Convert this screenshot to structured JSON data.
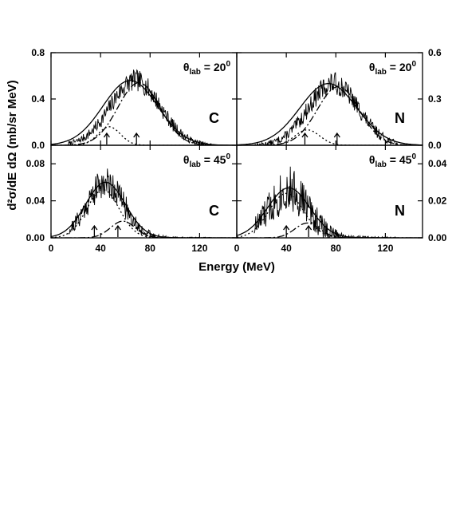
{
  "chart_data": {
    "type": "line",
    "xlabel": "Energy (MeV)",
    "ylabel": "d²σ/dE dΩ (mb/sr MeV)",
    "xlim": [
      0,
      150
    ],
    "x_ticks": [
      "0",
      "40",
      "80",
      "120"
    ],
    "grid": false,
    "panels": [
      {
        "id": "c20",
        "row": 0,
        "col": 0,
        "ylim": [
          0,
          0.8
        ],
        "y_ticks": [
          "0.0",
          "0.4",
          "0.8"
        ],
        "y_tick_values": [
          0,
          0.4,
          0.8
        ],
        "y_axis_side": "left",
        "nucleus": "C",
        "angle": {
          "symbol": "θ",
          "sub": "lab",
          "value": " = 20",
          "sup": "0"
        },
        "noise_amp": 0.09,
        "noise_seed": 7,
        "arrows": [
          45,
          69
        ],
        "series": [
          {
            "style": "data-spectrum",
            "peak": 0.56,
            "center": 68,
            "width": 20
          },
          {
            "style": "solid",
            "peak": 0.56,
            "center": 64,
            "width": 22
          },
          {
            "style": "dotted",
            "peak": 0.16,
            "center": 47,
            "width": 9
          },
          {
            "style": "dash-dot",
            "peak": 0.54,
            "center": 71,
            "width": 17
          }
        ]
      },
      {
        "id": "n20",
        "row": 0,
        "col": 1,
        "ylim": [
          0,
          0.6
        ],
        "y_ticks": [
          "0.0",
          "0.3",
          "0.6"
        ],
        "y_tick_values": [
          0,
          0.3,
          0.6
        ],
        "y_axis_side": "right",
        "nucleus": "N",
        "angle": {
          "symbol": "θ",
          "sub": "lab",
          "value": " = 20",
          "sup": "0"
        },
        "noise_amp": 0.07,
        "noise_seed": 13,
        "arrows": [
          55,
          81
        ],
        "series": [
          {
            "style": "data-spectrum",
            "peak": 0.4,
            "center": 78,
            "width": 20
          },
          {
            "style": "solid",
            "peak": 0.4,
            "center": 74,
            "width": 23
          },
          {
            "style": "dotted",
            "peak": 0.1,
            "center": 57,
            "width": 10
          },
          {
            "style": "dash-dot",
            "peak": 0.38,
            "center": 82,
            "width": 17
          }
        ]
      },
      {
        "id": "c45",
        "row": 1,
        "col": 0,
        "ylim": [
          0,
          0.1
        ],
        "y_ticks": [
          "0.00",
          "0.04",
          "0.08"
        ],
        "y_tick_values": [
          0,
          0.04,
          0.08
        ],
        "y_axis_side": "left",
        "nucleus": "C",
        "angle": {
          "symbol": "θ",
          "sub": "lab",
          "value": " = 45",
          "sup": "0"
        },
        "noise_amp": 0.016,
        "noise_seed": 21,
        "arrows": [
          35,
          54
        ],
        "series": [
          {
            "style": "data-spectrum",
            "peak": 0.06,
            "center": 44,
            "width": 15
          },
          {
            "style": "solid",
            "peak": 0.06,
            "center": 44,
            "width": 16
          },
          {
            "style": "dotted",
            "peak": 0.052,
            "center": 42,
            "width": 13
          },
          {
            "style": "dash-dot",
            "peak": 0.018,
            "center": 58,
            "width": 10
          }
        ]
      },
      {
        "id": "n45",
        "row": 1,
        "col": 1,
        "ylim": [
          0,
          0.05
        ],
        "y_ticks": [
          "0.00",
          "0.02",
          "0.04"
        ],
        "y_tick_values": [
          0,
          0.02,
          0.04
        ],
        "y_axis_side": "right",
        "nucleus": "N",
        "angle": {
          "symbol": "θ",
          "sub": "lab",
          "value": " = 45",
          "sup": "0"
        },
        "noise_amp": 0.012,
        "noise_seed": 33,
        "arrows": [
          40,
          58
        ],
        "series": [
          {
            "style": "data-spectrum",
            "peak": 0.026,
            "center": 42,
            "width": 16
          },
          {
            "style": "solid",
            "peak": 0.027,
            "center": 42,
            "width": 17
          },
          {
            "style": "dotted",
            "peak": 0.024,
            "center": 40,
            "width": 14
          },
          {
            "style": "dash-dot",
            "peak": 0.008,
            "center": 57,
            "width": 10
          }
        ]
      }
    ]
  }
}
